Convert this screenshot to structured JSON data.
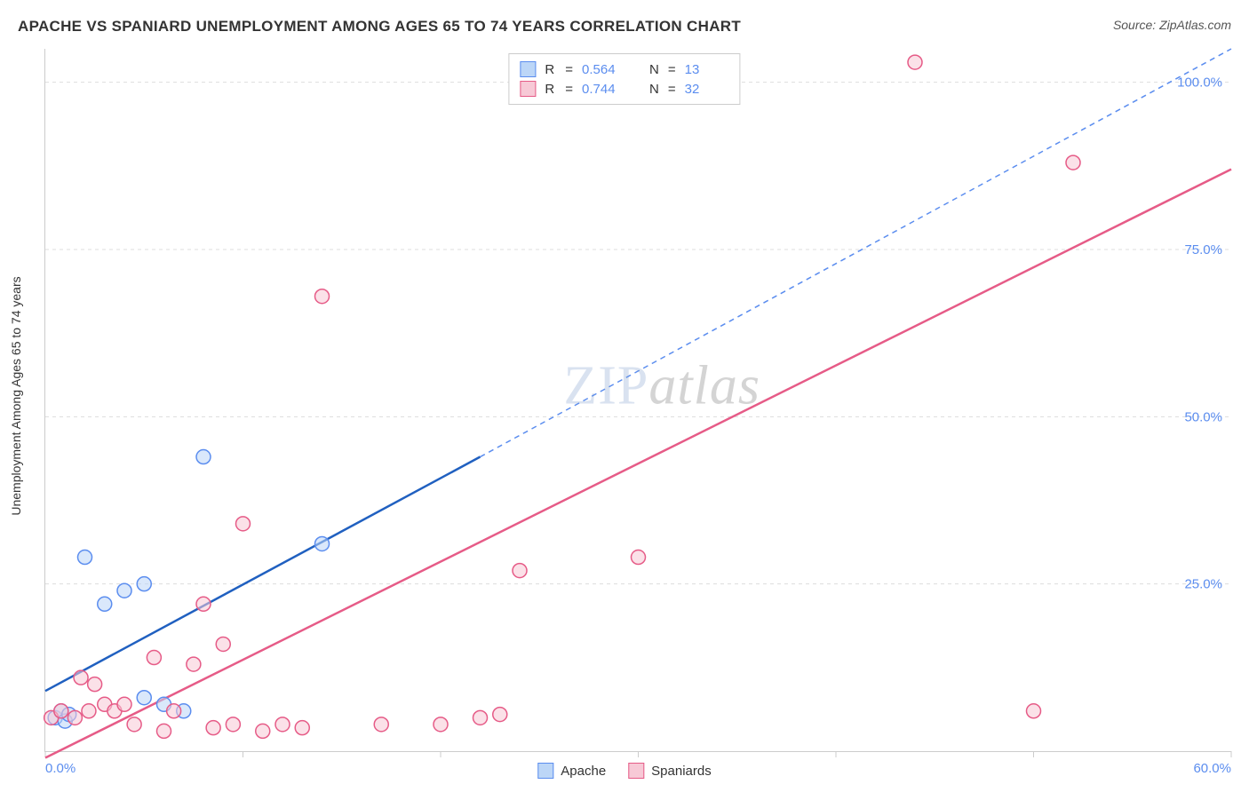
{
  "title": "APACHE VS SPANIARD UNEMPLOYMENT AMONG AGES 65 TO 74 YEARS CORRELATION CHART",
  "source_label": "Source: ZipAtlas.com",
  "y_axis_label": "Unemployment Among Ages 65 to 74 years",
  "watermark": {
    "part1": "ZIP",
    "part2": "atlas"
  },
  "legend_top": {
    "rows": [
      {
        "swatch_fill": "#bcd6f7",
        "swatch_border": "#5b8def",
        "r_label": "R",
        "r_value": "0.564",
        "n_label": "N",
        "n_value": "13"
      },
      {
        "swatch_fill": "#f7c9d6",
        "swatch_border": "#e65b87",
        "r_label": "R",
        "r_value": "0.744",
        "n_label": "N",
        "n_value": "32"
      }
    ]
  },
  "legend_bottom": {
    "items": [
      {
        "swatch_fill": "#bcd6f7",
        "swatch_border": "#5b8def",
        "label": "Apache"
      },
      {
        "swatch_fill": "#f7c9d6",
        "swatch_border": "#e65b87",
        "label": "Spaniards"
      }
    ]
  },
  "chart": {
    "type": "scatter",
    "xlim": [
      0,
      60
    ],
    "ylim": [
      0,
      105
    ],
    "x_ticks": [
      0,
      10,
      20,
      30,
      40,
      50,
      60
    ],
    "x_tick_labels": {
      "0": "0.0%",
      "60": "60.0%"
    },
    "y_ticks": [
      25,
      50,
      75,
      100
    ],
    "y_tick_labels": {
      "25": "25.0%",
      "50": "50.0%",
      "75": "75.0%",
      "100": "100.0%"
    },
    "grid_color": "#dddddd",
    "background_color": "#ffffff",
    "marker_radius": 8,
    "marker_stroke_width": 1.5,
    "line_width": 2.5,
    "series": [
      {
        "name": "Apache",
        "color_fill": "rgba(188,214,247,0.55)",
        "color_stroke": "#5b8def",
        "trend_line_color": "#2060c0",
        "trend_dash_color": "#5b8def",
        "trend": {
          "x1": 0,
          "y1": 9,
          "x2_solid": 22,
          "y2_solid": 44,
          "x2_dash": 60,
          "y2_dash": 105
        },
        "points": [
          {
            "x": 0.5,
            "y": 5
          },
          {
            "x": 0.8,
            "y": 6
          },
          {
            "x": 1.0,
            "y": 4.5
          },
          {
            "x": 1.2,
            "y": 5.5
          },
          {
            "x": 2.0,
            "y": 29
          },
          {
            "x": 3.0,
            "y": 22
          },
          {
            "x": 4.0,
            "y": 24
          },
          {
            "x": 5.0,
            "y": 25
          },
          {
            "x": 5.0,
            "y": 8
          },
          {
            "x": 6.0,
            "y": 7
          },
          {
            "x": 7.0,
            "y": 6
          },
          {
            "x": 8.0,
            "y": 44
          },
          {
            "x": 14.0,
            "y": 31
          }
        ]
      },
      {
        "name": "Spaniards",
        "color_fill": "rgba(247,201,214,0.55)",
        "color_stroke": "#e65b87",
        "trend_line_color": "#e65b87",
        "trend": {
          "x1": 0,
          "y1": -1,
          "x2_solid": 60,
          "y2_solid": 87
        },
        "points": [
          {
            "x": 0.3,
            "y": 5
          },
          {
            "x": 0.8,
            "y": 6
          },
          {
            "x": 1.5,
            "y": 5
          },
          {
            "x": 1.8,
            "y": 11
          },
          {
            "x": 2.2,
            "y": 6
          },
          {
            "x": 2.5,
            "y": 10
          },
          {
            "x": 3.0,
            "y": 7
          },
          {
            "x": 3.5,
            "y": 6
          },
          {
            "x": 4.0,
            "y": 7
          },
          {
            "x": 4.5,
            "y": 4
          },
          {
            "x": 5.5,
            "y": 14
          },
          {
            "x": 6.0,
            "y": 3
          },
          {
            "x": 6.5,
            "y": 6
          },
          {
            "x": 7.5,
            "y": 13
          },
          {
            "x": 8.0,
            "y": 22
          },
          {
            "x": 8.5,
            "y": 3.5
          },
          {
            "x": 9.0,
            "y": 16
          },
          {
            "x": 9.5,
            "y": 4
          },
          {
            "x": 10.0,
            "y": 34
          },
          {
            "x": 11.0,
            "y": 3
          },
          {
            "x": 12.0,
            "y": 4
          },
          {
            "x": 13.0,
            "y": 3.5
          },
          {
            "x": 14.0,
            "y": 68
          },
          {
            "x": 17.0,
            "y": 4
          },
          {
            "x": 20.0,
            "y": 4
          },
          {
            "x": 22.0,
            "y": 5
          },
          {
            "x": 23.0,
            "y": 5.5
          },
          {
            "x": 24.0,
            "y": 27
          },
          {
            "x": 30.0,
            "y": 29
          },
          {
            "x": 44.0,
            "y": 103
          },
          {
            "x": 50.0,
            "y": 6
          },
          {
            "x": 52.0,
            "y": 88
          }
        ]
      }
    ]
  }
}
